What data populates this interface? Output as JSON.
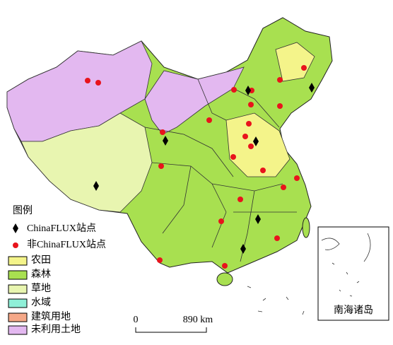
{
  "legend": {
    "title": "图例",
    "items": [
      "ChinaFLUX站点",
      "非ChinaFLUX站点",
      "农田",
      "森林",
      "草地",
      "水域",
      "建筑用地",
      "未利用土地"
    ]
  },
  "scale_bar": {
    "start": "0",
    "end": "890 km"
  },
  "inset": {
    "label": "南海诸岛"
  }
}
